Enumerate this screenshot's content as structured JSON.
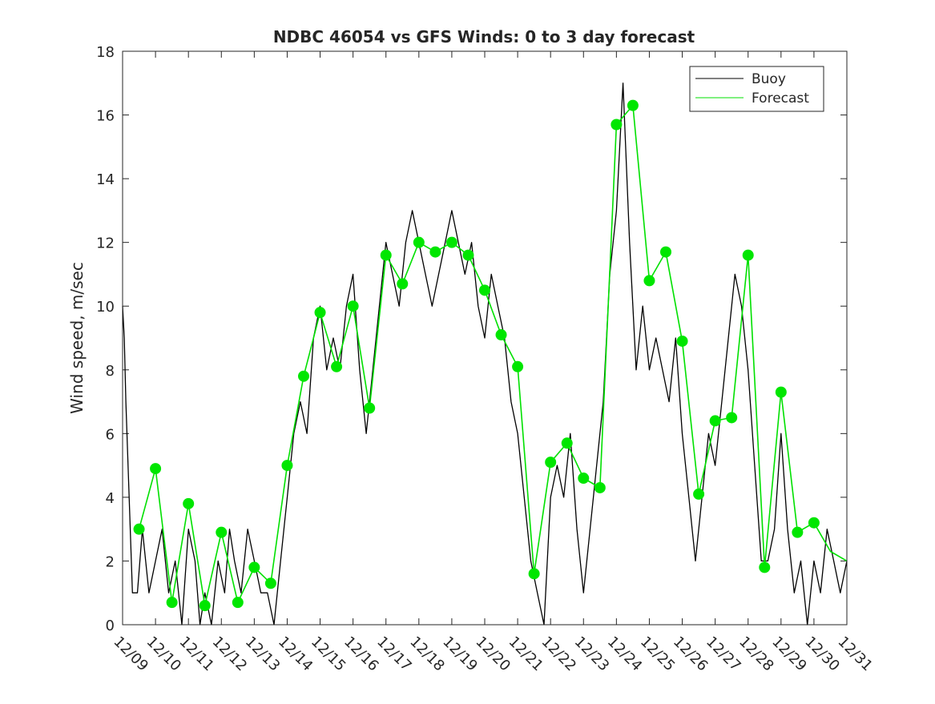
{
  "chart_data": {
    "type": "line",
    "title": "NDBC 46054 vs GFS Winds: 0 to 3 day forecast",
    "xlabel": "",
    "ylabel": "Wind speed, m/sec",
    "xlim": [
      0,
      22
    ],
    "ylim": [
      0,
      18
    ],
    "grid": false,
    "legend_position": "top-right",
    "x_ticks": [
      {
        "x": 0,
        "label": "12/09"
      },
      {
        "x": 1,
        "label": "12/10"
      },
      {
        "x": 2,
        "label": "12/11"
      },
      {
        "x": 3,
        "label": "12/12"
      },
      {
        "x": 4,
        "label": "12/13"
      },
      {
        "x": 5,
        "label": "12/14"
      },
      {
        "x": 6,
        "label": "12/15"
      },
      {
        "x": 7,
        "label": "12/16"
      },
      {
        "x": 8,
        "label": "12/17"
      },
      {
        "x": 9,
        "label": "12/18"
      },
      {
        "x": 10,
        "label": "12/19"
      },
      {
        "x": 11,
        "label": "12/20"
      },
      {
        "x": 12,
        "label": "12/21"
      },
      {
        "x": 13,
        "label": "12/22"
      },
      {
        "x": 14,
        "label": "12/23"
      },
      {
        "x": 15,
        "label": "12/24"
      },
      {
        "x": 16,
        "label": "12/25"
      },
      {
        "x": 17,
        "label": "12/26"
      },
      {
        "x": 18,
        "label": "12/27"
      },
      {
        "x": 19,
        "label": "12/28"
      },
      {
        "x": 20,
        "label": "12/29"
      },
      {
        "x": 21,
        "label": "12/30"
      },
      {
        "x": 22,
        "label": "12/31"
      }
    ],
    "y_ticks": [
      0,
      2,
      4,
      6,
      8,
      10,
      12,
      14,
      16,
      18
    ],
    "series": [
      {
        "name": "Buoy",
        "color": "#000000",
        "points": [
          [
            0,
            10
          ],
          [
            0.05,
            9
          ],
          [
            0.1,
            7
          ],
          [
            0.2,
            4
          ],
          [
            0.3,
            1
          ],
          [
            0.45,
            1
          ],
          [
            0.6,
            3
          ],
          [
            0.8,
            1
          ],
          [
            1,
            2
          ],
          [
            1.2,
            3
          ],
          [
            1.4,
            1
          ],
          [
            1.6,
            2
          ],
          [
            1.8,
            0
          ],
          [
            2,
            3
          ],
          [
            2.2,
            2
          ],
          [
            2.35,
            0
          ],
          [
            2.5,
            1
          ],
          [
            2.7,
            0
          ],
          [
            2.9,
            2
          ],
          [
            3.1,
            1
          ],
          [
            3.25,
            3
          ],
          [
            3.4,
            2
          ],
          [
            3.6,
            1
          ],
          [
            3.8,
            3
          ],
          [
            4,
            2
          ],
          [
            4.2,
            1
          ],
          [
            4.4,
            1
          ],
          [
            4.6,
            0
          ],
          [
            4.8,
            2
          ],
          [
            5,
            4
          ],
          [
            5.2,
            6
          ],
          [
            5.4,
            7
          ],
          [
            5.6,
            6
          ],
          [
            5.8,
            9
          ],
          [
            6,
            10
          ],
          [
            6.2,
            8
          ],
          [
            6.4,
            9
          ],
          [
            6.6,
            8
          ],
          [
            6.8,
            10
          ],
          [
            7,
            11
          ],
          [
            7.2,
            8
          ],
          [
            7.4,
            6
          ],
          [
            7.6,
            8
          ],
          [
            7.8,
            10
          ],
          [
            8,
            12
          ],
          [
            8.2,
            11
          ],
          [
            8.4,
            10
          ],
          [
            8.6,
            12
          ],
          [
            8.8,
            13
          ],
          [
            9,
            12
          ],
          [
            9.2,
            11
          ],
          [
            9.4,
            10
          ],
          [
            9.6,
            11
          ],
          [
            9.8,
            12
          ],
          [
            10,
            13
          ],
          [
            10.2,
            12
          ],
          [
            10.4,
            11
          ],
          [
            10.6,
            12
          ],
          [
            10.8,
            10
          ],
          [
            11,
            9
          ],
          [
            11.2,
            11
          ],
          [
            11.4,
            10
          ],
          [
            11.6,
            9
          ],
          [
            11.8,
            7
          ],
          [
            12,
            6
          ],
          [
            12.2,
            4
          ],
          [
            12.4,
            2
          ],
          [
            12.6,
            1
          ],
          [
            12.8,
            0
          ],
          [
            13,
            4
          ],
          [
            13.2,
            5
          ],
          [
            13.4,
            4
          ],
          [
            13.6,
            6
          ],
          [
            13.8,
            3
          ],
          [
            14,
            1
          ],
          [
            14.2,
            3
          ],
          [
            14.4,
            5
          ],
          [
            14.6,
            7
          ],
          [
            14.8,
            11
          ],
          [
            15,
            13
          ],
          [
            15.2,
            17
          ],
          [
            15.4,
            12
          ],
          [
            15.6,
            8
          ],
          [
            15.8,
            10
          ],
          [
            16,
            8
          ],
          [
            16.2,
            9
          ],
          [
            16.4,
            8
          ],
          [
            16.6,
            7
          ],
          [
            16.8,
            9
          ],
          [
            17,
            6
          ],
          [
            17.2,
            4
          ],
          [
            17.4,
            2
          ],
          [
            17.6,
            4
          ],
          [
            17.8,
            6
          ],
          [
            18,
            5
          ],
          [
            18.2,
            7
          ],
          [
            18.4,
            9
          ],
          [
            18.6,
            11
          ],
          [
            18.8,
            10
          ],
          [
            19,
            8
          ],
          [
            19.2,
            5
          ],
          [
            19.4,
            2
          ],
          [
            19.6,
            2
          ],
          [
            19.8,
            3
          ],
          [
            20,
            6
          ],
          [
            20.2,
            3
          ],
          [
            20.4,
            1
          ],
          [
            20.6,
            2
          ],
          [
            20.8,
            0
          ],
          [
            21,
            2
          ],
          [
            21.2,
            1
          ],
          [
            21.4,
            3
          ],
          [
            21.6,
            2
          ],
          [
            21.8,
            1
          ],
          [
            22,
            2
          ]
        ]
      },
      {
        "name": "Forecast",
        "color": "#00e000",
        "points": [
          [
            0.5,
            3
          ],
          [
            1,
            4.9
          ],
          [
            1.5,
            0.7
          ],
          [
            2,
            3.8
          ],
          [
            2.5,
            0.6
          ],
          [
            3,
            2.9
          ],
          [
            3.5,
            0.7
          ],
          [
            4,
            1.8
          ],
          [
            4.5,
            1.3
          ],
          [
            5,
            5
          ],
          [
            5.5,
            7.8
          ],
          [
            6,
            9.8
          ],
          [
            6.5,
            8.1
          ],
          [
            7,
            10
          ],
          [
            7.5,
            6.8
          ],
          [
            8,
            11.6
          ],
          [
            8.5,
            10.7
          ],
          [
            9,
            12
          ],
          [
            9.5,
            11.7
          ],
          [
            10,
            12
          ],
          [
            10.5,
            11.6
          ],
          [
            11,
            10.5
          ],
          [
            11.5,
            9.1
          ],
          [
            12,
            8.1
          ],
          [
            12.5,
            1.6
          ],
          [
            13,
            5.1
          ],
          [
            13.5,
            5.7
          ],
          [
            14,
            4.6
          ],
          [
            14.5,
            4.3
          ],
          [
            15,
            15.7
          ],
          [
            15.5,
            16.3
          ],
          [
            16,
            10.8
          ],
          [
            16.5,
            11.7
          ],
          [
            17,
            8.9
          ],
          [
            17.5,
            4.1
          ],
          [
            18,
            6.4
          ],
          [
            18.5,
            6.5
          ],
          [
            19,
            11.6
          ],
          [
            19.5,
            1.8
          ],
          [
            20,
            7.3
          ],
          [
            20.5,
            2.9
          ],
          [
            21,
            3.2
          ],
          [
            21.5,
            2.3
          ],
          [
            22,
            2
          ]
        ]
      }
    ],
    "markers": {
      "series": "Forecast",
      "x": [
        0.5,
        1,
        1.5,
        2,
        2.5,
        3,
        3.5,
        4,
        4.5,
        5,
        5.5,
        6,
        6.5,
        7,
        7.5,
        8,
        8.5,
        9,
        9.5,
        10,
        10.5,
        11,
        11.5,
        12,
        12.5,
        13,
        13.5,
        14,
        14.5,
        15,
        15.5,
        16,
        16.5,
        17,
        17.5,
        18,
        18.5,
        19,
        19.5,
        20,
        20.5,
        21
      ],
      "y": [
        3,
        4.9,
        0.7,
        3.8,
        0.6,
        2.9,
        0.7,
        1.8,
        1.3,
        5,
        7.8,
        9.8,
        8.1,
        10,
        6.8,
        11.6,
        10.7,
        12,
        11.7,
        12,
        11.6,
        10.5,
        9.1,
        8.1,
        1.6,
        5.1,
        5.7,
        4.6,
        4.3,
        15.7,
        16.3,
        10.8,
        11.7,
        8.9,
        4.1,
        6.4,
        6.5,
        11.6,
        1.8,
        7.3,
        2.9,
        3.2
      ]
    }
  }
}
